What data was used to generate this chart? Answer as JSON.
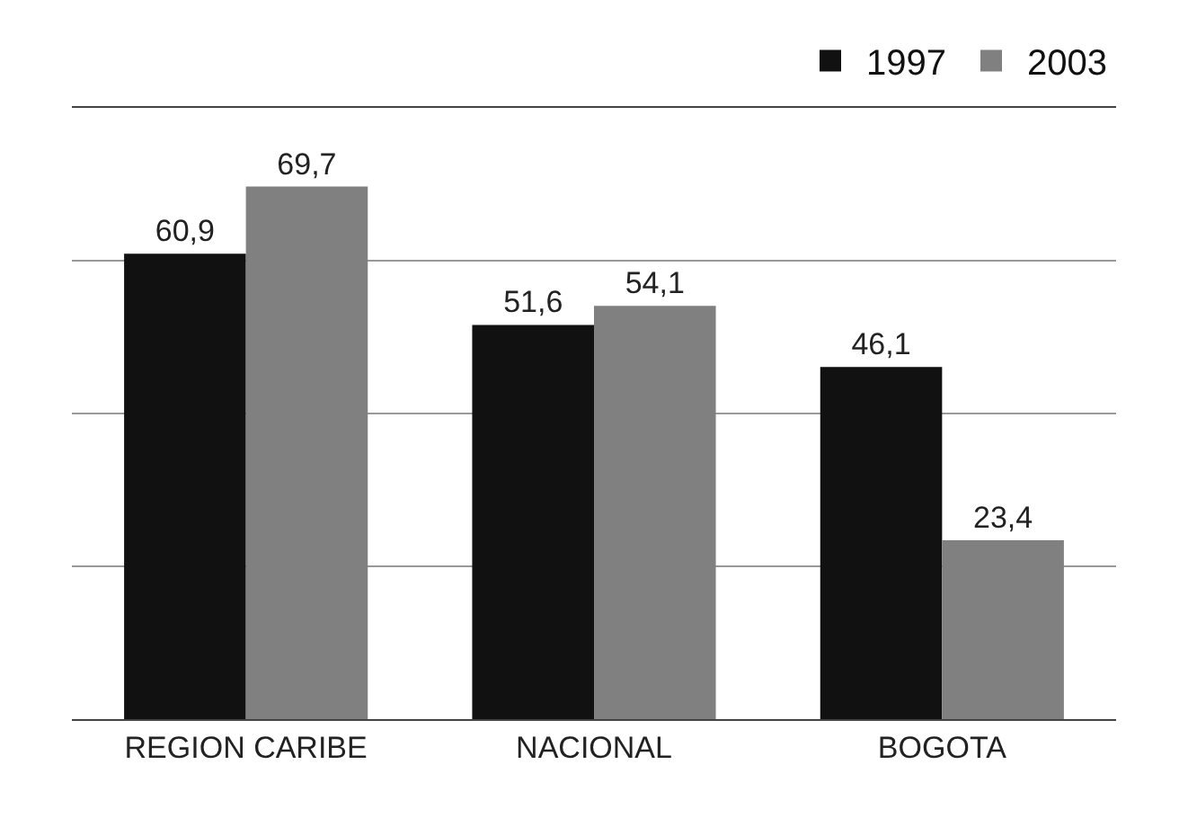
{
  "chart_data": {
    "type": "bar",
    "categories": [
      "REGION CARIBE",
      "NACIONAL",
      "BOGOTA"
    ],
    "series": [
      {
        "name": "1997",
        "color": "#111111",
        "values": [
          60.9,
          51.6,
          46.1
        ],
        "value_labels": [
          "60,9",
          "51,6",
          "46,1"
        ]
      },
      {
        "name": "2003",
        "color": "#808080",
        "values": [
          69.7,
          54.1,
          23.4
        ],
        "value_labels": [
          "69,7",
          "54,1",
          "23,4"
        ]
      }
    ],
    "ylim": [
      0,
      80
    ],
    "yticks": [
      {
        "value": 0,
        "label": null
      },
      {
        "value": 20,
        "label": null
      },
      {
        "value": 40,
        "label": null
      },
      {
        "value": 60,
        "label": null
      },
      {
        "value": 80,
        "label": null
      }
    ],
    "grid": "y",
    "legend": "top right",
    "tick_labels": "x"
  }
}
